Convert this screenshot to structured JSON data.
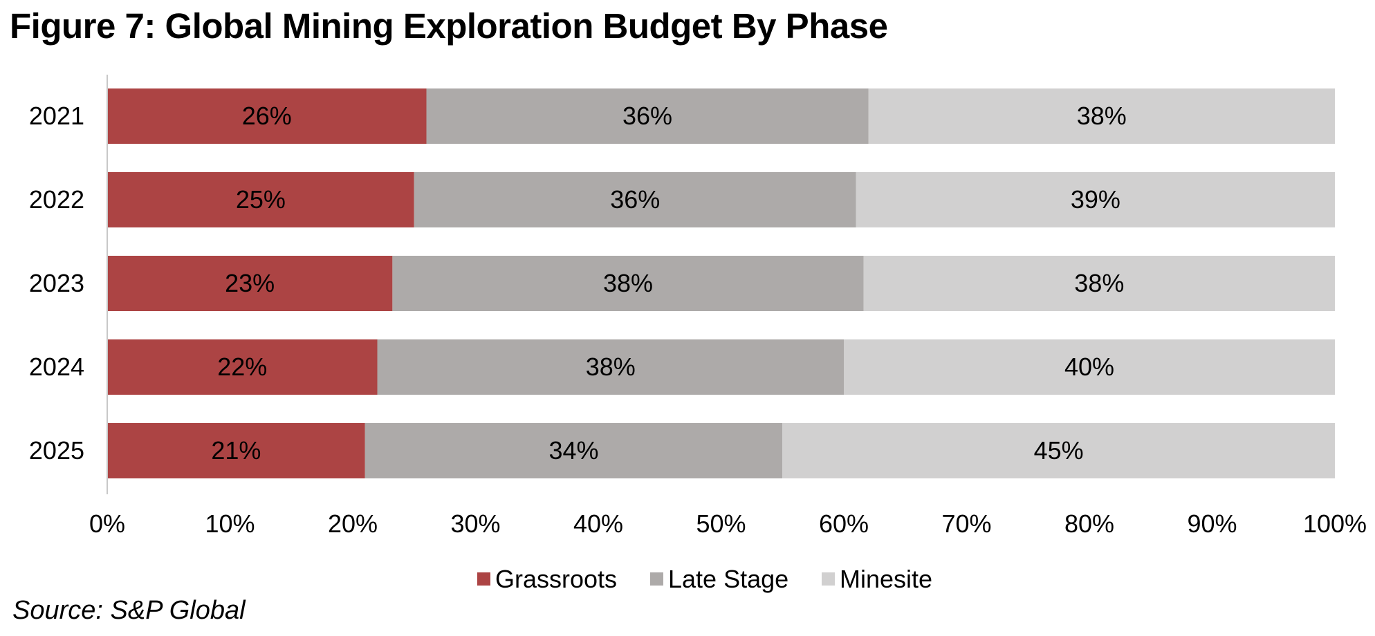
{
  "title": "Figure 7: Global Mining Exploration Budget By Phase",
  "source": "Source: S&P Global",
  "chart_data": {
    "type": "bar",
    "orientation": "horizontal",
    "stacked": true,
    "categories": [
      "2021",
      "2022",
      "2023",
      "2024",
      "2025"
    ],
    "series": [
      {
        "name": "Grassroots",
        "color": "#ac4444",
        "values": [
          26,
          25,
          23,
          22,
          21
        ],
        "labels": [
          "26%",
          "25%",
          "23%",
          "22%",
          "21%"
        ]
      },
      {
        "name": "Late Stage",
        "color": "#adaaa9",
        "values": [
          36,
          36,
          38,
          38,
          34
        ],
        "labels": [
          "36%",
          "36%",
          "38%",
          "38%",
          "34%"
        ]
      },
      {
        "name": "Minesite",
        "color": "#d1d0d0",
        "values": [
          38,
          39,
          38,
          40,
          45
        ],
        "labels": [
          "38%",
          "39%",
          "38%",
          "40%",
          "45%"
        ]
      }
    ],
    "xlim": [
      0,
      100
    ],
    "xticks": [
      "0%",
      "10%",
      "20%",
      "30%",
      "40%",
      "50%",
      "60%",
      "70%",
      "80%",
      "90%",
      "100%"
    ],
    "grid": false,
    "legend": "bottom"
  }
}
